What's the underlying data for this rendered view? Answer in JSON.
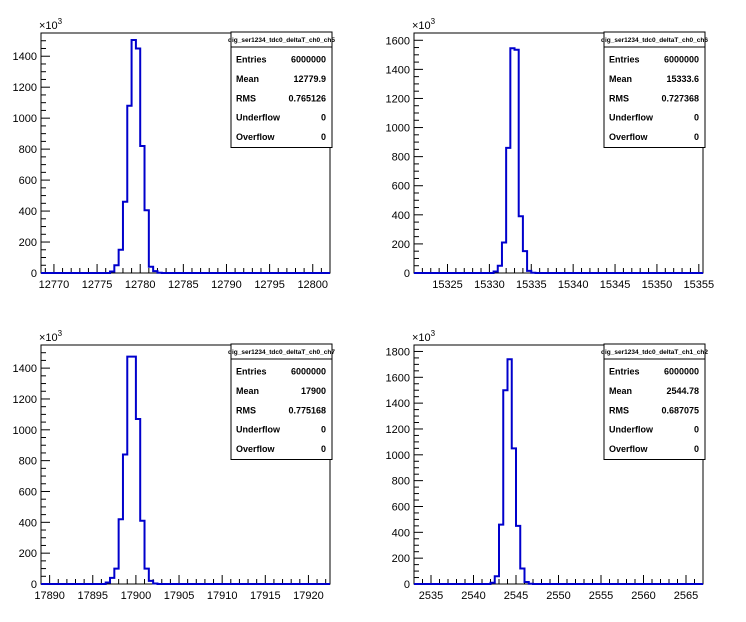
{
  "chart_data": [
    {
      "type": "histogram",
      "stats_title": "dig_ser1234_tdc0_deltaT_ch0_ch5",
      "stats": [
        {
          "label": "Entries",
          "value": "6000000"
        },
        {
          "label": "Mean",
          "value": "12779.9"
        },
        {
          "label": "RMS",
          "value": "0.765126"
        },
        {
          "label": "Underflow",
          "value": "0"
        },
        {
          "label": "Overflow",
          "value": "0"
        }
      ],
      "y_multiplier": "10^3",
      "xlim": [
        12768.5,
        12802
      ],
      "ylim": [
        0,
        1550
      ],
      "x_ticks": [
        12770,
        12775,
        12780,
        12785,
        12790,
        12795,
        12800
      ],
      "y_ticks": [
        0,
        200,
        400,
        600,
        800,
        1000,
        1200,
        1400
      ],
      "bins": [
        {
          "x": 12776.5,
          "y": 10
        },
        {
          "x": 12777.0,
          "y": 50
        },
        {
          "x": 12777.5,
          "y": 150
        },
        {
          "x": 12778.0,
          "y": 460
        },
        {
          "x": 12778.5,
          "y": 1080
        },
        {
          "x": 12779.0,
          "y": 1505
        },
        {
          "x": 12779.5,
          "y": 1450
        },
        {
          "x": 12780.0,
          "y": 820
        },
        {
          "x": 12780.5,
          "y": 405
        },
        {
          "x": 12781.0,
          "y": 40
        },
        {
          "x": 12781.5,
          "y": 12
        },
        {
          "x": 12782.0,
          "y": 2
        }
      ]
    },
    {
      "type": "histogram",
      "stats_title": "dig_ser1234_tdc0_deltaT_ch0_ch6",
      "stats": [
        {
          "label": "Entries",
          "value": "6000000"
        },
        {
          "label": "Mean",
          "value": "15333.6"
        },
        {
          "label": "RMS",
          "value": "0.727368"
        },
        {
          "label": "Underflow",
          "value": "0"
        },
        {
          "label": "Overflow",
          "value": "0"
        }
      ],
      "y_multiplier": "10^3",
      "xlim": [
        15321,
        15355.5
      ],
      "ylim": [
        0,
        1650
      ],
      "x_ticks": [
        15325,
        15330,
        15335,
        15340,
        15345,
        15350,
        15355
      ],
      "y_ticks": [
        0,
        200,
        400,
        600,
        800,
        1000,
        1200,
        1400,
        1600
      ],
      "bins": [
        {
          "x": 15330.5,
          "y": 10
        },
        {
          "x": 15331.0,
          "y": 50
        },
        {
          "x": 15331.5,
          "y": 210
        },
        {
          "x": 15332.0,
          "y": 860
        },
        {
          "x": 15332.5,
          "y": 1545
        },
        {
          "x": 15333.0,
          "y": 1535
        },
        {
          "x": 15333.5,
          "y": 390
        },
        {
          "x": 15334.0,
          "y": 150
        },
        {
          "x": 15334.5,
          "y": 15
        },
        {
          "x": 15335.0,
          "y": 2
        }
      ]
    },
    {
      "type": "histogram",
      "stats_title": "dig_ser1234_tdc0_deltaT_ch0_ch7",
      "stats": [
        {
          "label": "Entries",
          "value": "6000000"
        },
        {
          "label": "Mean",
          "value": "17900"
        },
        {
          "label": "RMS",
          "value": "0.775168"
        },
        {
          "label": "Underflow",
          "value": "0"
        },
        {
          "label": "Overflow",
          "value": "0"
        }
      ],
      "y_multiplier": "10^3",
      "xlim": [
        17889,
        17922.5
      ],
      "ylim": [
        0,
        1550
      ],
      "x_ticks": [
        17890,
        17895,
        17900,
        17905,
        17910,
        17915,
        17920
      ],
      "y_ticks": [
        0,
        200,
        400,
        600,
        800,
        1000,
        1200,
        1400
      ],
      "bins": [
        {
          "x": 17896.5,
          "y": 10
        },
        {
          "x": 17897.0,
          "y": 40
        },
        {
          "x": 17897.5,
          "y": 100
        },
        {
          "x": 17898.0,
          "y": 420
        },
        {
          "x": 17898.5,
          "y": 840
        },
        {
          "x": 17899.0,
          "y": 1475
        },
        {
          "x": 17899.5,
          "y": 1475
        },
        {
          "x": 17900.0,
          "y": 1070
        },
        {
          "x": 17900.5,
          "y": 410
        },
        {
          "x": 17901.0,
          "y": 100
        },
        {
          "x": 17901.5,
          "y": 20
        },
        {
          "x": 17902.0,
          "y": 3
        }
      ]
    },
    {
      "type": "histogram",
      "stats_title": "dig_ser1234_tdc0_deltaT_ch1_ch2",
      "stats": [
        {
          "label": "Entries",
          "value": "6000000"
        },
        {
          "label": "Mean",
          "value": "2544.78"
        },
        {
          "label": "RMS",
          "value": "0.687075"
        },
        {
          "label": "Underflow",
          "value": "0"
        },
        {
          "label": "Overflow",
          "value": "0"
        }
      ],
      "y_multiplier": "10^3",
      "xlim": [
        2533,
        2567
      ],
      "ylim": [
        0,
        1850
      ],
      "x_ticks": [
        2535,
        2540,
        2545,
        2550,
        2555,
        2560,
        2565
      ],
      "y_ticks": [
        0,
        200,
        400,
        600,
        800,
        1000,
        1200,
        1400,
        1600,
        1800
      ],
      "bins": [
        {
          "x": 2542.0,
          "y": 10
        },
        {
          "x": 2542.5,
          "y": 60
        },
        {
          "x": 2543.0,
          "y": 460
        },
        {
          "x": 2543.5,
          "y": 1500
        },
        {
          "x": 2544.0,
          "y": 1740
        },
        {
          "x": 2544.5,
          "y": 1050
        },
        {
          "x": 2545.0,
          "y": 450
        },
        {
          "x": 2545.5,
          "y": 120
        },
        {
          "x": 2546.0,
          "y": 15
        },
        {
          "x": 2546.5,
          "y": 2
        }
      ]
    }
  ]
}
